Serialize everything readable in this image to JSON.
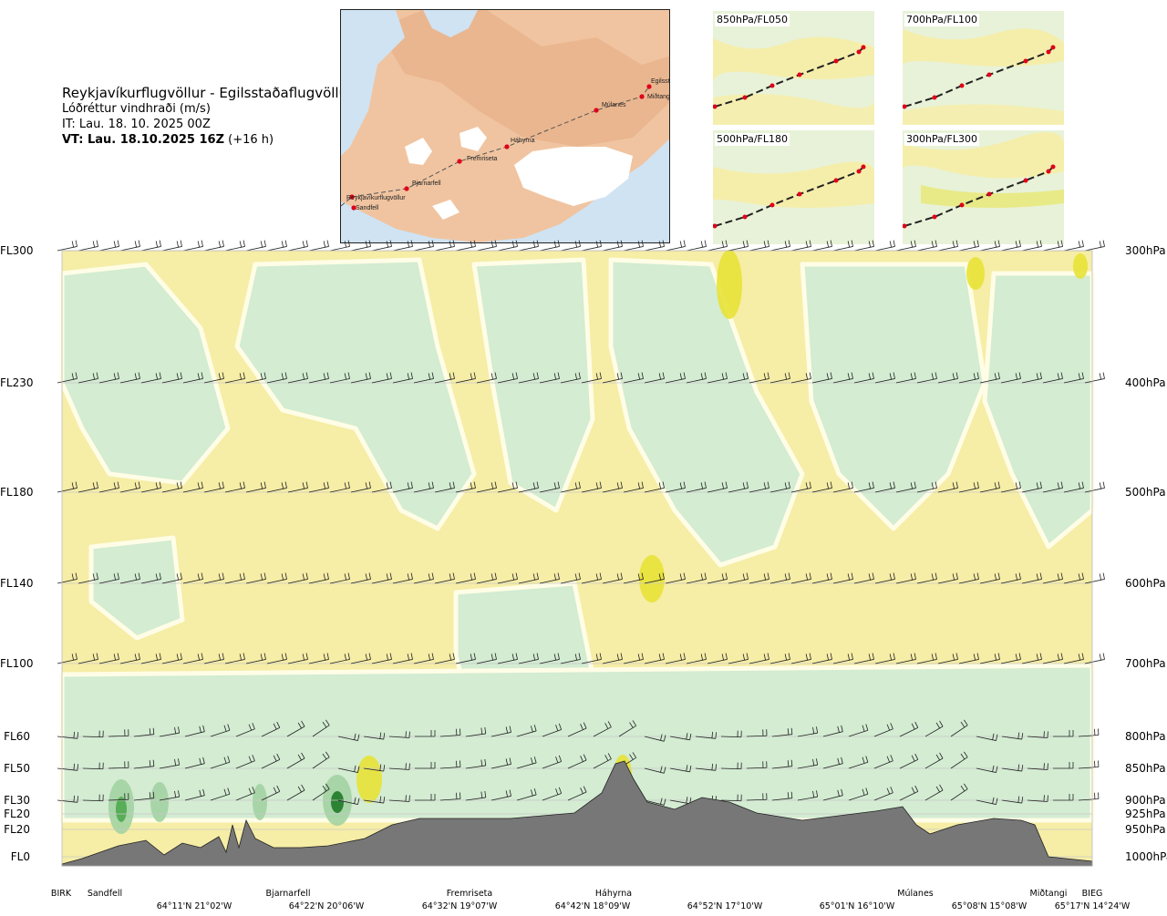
{
  "header": {
    "route": "Reykjavíkurflugvöllur - Egilsstaðaflugvöllur",
    "variable": "Lóðréttur vindhraði (m/s)",
    "init_time": "IT: Lau. 18. 10. 2025 00Z",
    "valid_label": "VT: Lau. 18.10.2025 16Z",
    "valid_offset": "(+16 h)"
  },
  "route_map": {
    "points": [
      "Reykjavíkurflugvöllur",
      "Sandfell",
      "Bjarnarfell",
      "Fremriseta",
      "Háhyrna",
      "Múlanes",
      "Miðtangi",
      "Egilssta"
    ],
    "colors": {
      "sea": "#cfe3f3",
      "land": "#f0c4a0",
      "ice": "#ffffff",
      "route": "#555555",
      "point": "#e0001a"
    }
  },
  "insets": [
    {
      "label": "850hPa/FL050"
    },
    {
      "label": "700hPa/FL100"
    },
    {
      "label": "500hPa/FL180"
    },
    {
      "label": "300hPa/FL300"
    }
  ],
  "chart_data": {
    "type": "heatmap",
    "title": "Reykjavíkurflugvöllur - Egilsstaðaflugvöllur",
    "left_levels": [
      "FL300",
      "FL230",
      "FL180",
      "FL140",
      "FL100",
      "FL60",
      "FL50",
      "FL30",
      "FL20",
      "FL20",
      "FL0"
    ],
    "right_levels": [
      "300hPa",
      "400hPa",
      "500hPa",
      "600hPa",
      "700hPa",
      "800hPa",
      "850hPa",
      "900hPa",
      "925hPa",
      "950hPa",
      "1000hPa"
    ],
    "waypoints": [
      "BIRK",
      "Sandfell",
      "Bjarnarfell",
      "Fremriseta",
      "Háhyrna",
      "Múlanes",
      "Miðtangi",
      "BIEG"
    ],
    "coordinates": [
      "64°11'N 21°02'W",
      "64°22'N 20°06'W",
      "64°32'N 19°07'W",
      "64°42'N 18°09'W",
      "64°52'N 17°10'W",
      "65°01'N 16°10'W",
      "65°08'N 15°08'W",
      "65°17'N 14°24'W"
    ],
    "colors": {
      "updraft_weak": "#f6eda6",
      "updraft_moderate": "#e8e236",
      "downdraft_weak": "#d3ecd2",
      "downdraft_moderate": "#a3d3a2",
      "downdraft_strong": "#4fa84f",
      "downdraft_extreme": "#1e7a28",
      "near_zero": "#fffde6",
      "terrain": "#777777"
    },
    "grid": true
  }
}
